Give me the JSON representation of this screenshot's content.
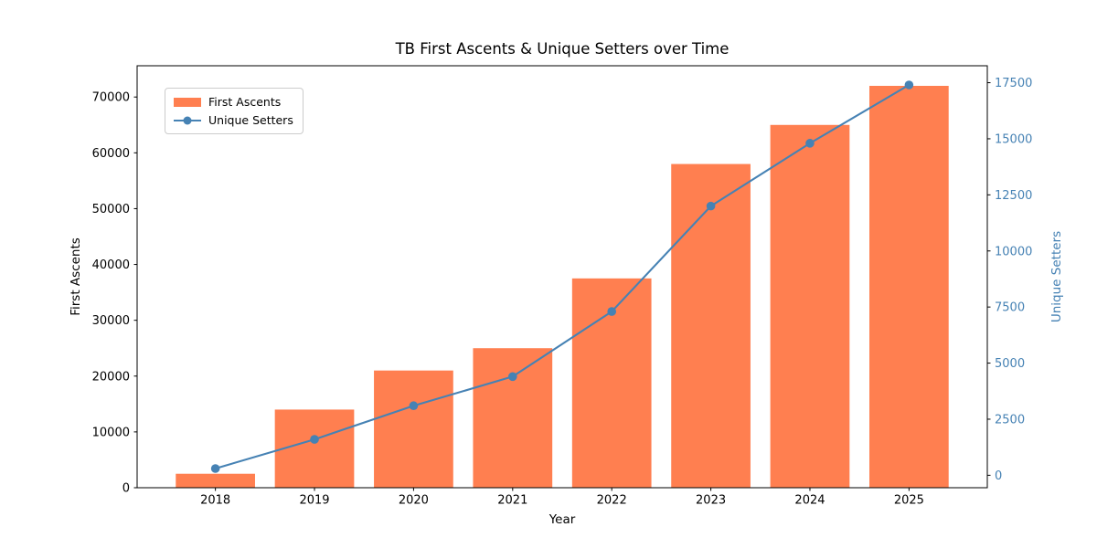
{
  "chart_data": {
    "type": "bar",
    "title": "TB First Ascents & Unique Setters over Time",
    "xlabel": "Year",
    "ylabel_left": "First Ascents",
    "ylabel_right": "Unique Setters",
    "categories": [
      "2018",
      "2019",
      "2020",
      "2021",
      "2022",
      "2023",
      "2024",
      "2025"
    ],
    "series": [
      {
        "name": "First Ascents",
        "kind": "bar",
        "axis": "left",
        "color": "#FF7F50",
        "values": [
          2500,
          14000,
          21000,
          25000,
          37500,
          58000,
          65000,
          72000
        ]
      },
      {
        "name": "Unique Setters",
        "kind": "line",
        "axis": "right",
        "color": "#4682B4",
        "values": [
          300,
          1600,
          3100,
          4400,
          7300,
          12000,
          14800,
          17400
        ]
      }
    ],
    "yticks_left": [
      0,
      10000,
      20000,
      30000,
      40000,
      50000,
      60000,
      70000
    ],
    "yticks_right": [
      0,
      2500,
      5000,
      7500,
      10000,
      12500,
      15000,
      17500
    ],
    "ylim_left": [
      0,
      75600
    ],
    "ylim_right": [
      -555,
      18255
    ],
    "xlim": [
      -0.79,
      7.79
    ],
    "grid": false,
    "legend_position": "upper left",
    "colors": {
      "bar": "#FF7F50",
      "line": "#4682B4",
      "axis": "#000000",
      "right_axis_text": "#4682B4",
      "background": "#ffffff"
    }
  }
}
